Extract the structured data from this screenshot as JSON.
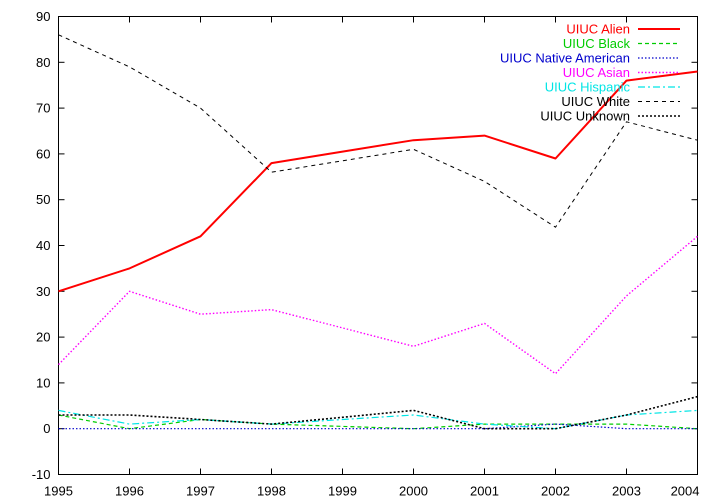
{
  "chart_data": {
    "type": "line",
    "x": [
      1995,
      1996,
      1997,
      1998,
      1999,
      2000,
      2001,
      2002,
      2003,
      2004
    ],
    "xlim": [
      1995,
      2004
    ],
    "ylim": [
      -10,
      90
    ],
    "x_ticks": [
      "1995",
      "1996",
      "1997",
      "1998",
      "1999",
      "2000",
      "2001",
      "2002",
      "2003",
      "2004"
    ],
    "y_ticks": [
      "-10",
      "0",
      "10",
      "20",
      "30",
      "40",
      "50",
      "60",
      "70",
      "80",
      "90"
    ],
    "grid": false,
    "legend_position": "top-right",
    "series": [
      {
        "name": "UIUC Alien",
        "color": "#ff0000",
        "dash": "",
        "width": 2,
        "values": [
          30,
          35,
          42,
          58,
          60.5,
          63,
          64,
          59,
          76,
          78
        ]
      },
      {
        "name": "UIUC Black",
        "color": "#00cc00",
        "dash": "4,3",
        "width": 1.2,
        "values": [
          3,
          0,
          2,
          1,
          0.5,
          0,
          1,
          1,
          1,
          0
        ]
      },
      {
        "name": "UIUC Native American",
        "color": "#0000cc",
        "dash": "1.5,2",
        "width": 1.2,
        "values": [
          0,
          0,
          0,
          0,
          0,
          0,
          0,
          1,
          0,
          0
        ]
      },
      {
        "name": "UIUC Asian",
        "color": "#ff00ff",
        "dash": "1.5,2",
        "width": 1.4,
        "values": [
          14,
          30,
          25,
          26,
          22,
          18,
          23,
          12,
          29,
          42
        ]
      },
      {
        "name": "UIUC Hispanic",
        "color": "#00e5e5",
        "dash": "7,3,2,3",
        "width": 1.2,
        "values": [
          4,
          1,
          2,
          1,
          2,
          3,
          1,
          0,
          3,
          4
        ]
      },
      {
        "name": "UIUC White",
        "color": "#000000",
        "dash": "4,4",
        "width": 1,
        "values": [
          86,
          79,
          70,
          56,
          58.5,
          61,
          54,
          44,
          67,
          63
        ]
      },
      {
        "name": "UIUC Unknown",
        "color": "#000000",
        "dash": "2,2",
        "width": 1.6,
        "values": [
          3,
          3,
          2,
          1,
          2.5,
          4,
          0,
          0,
          3,
          7
        ]
      }
    ]
  }
}
